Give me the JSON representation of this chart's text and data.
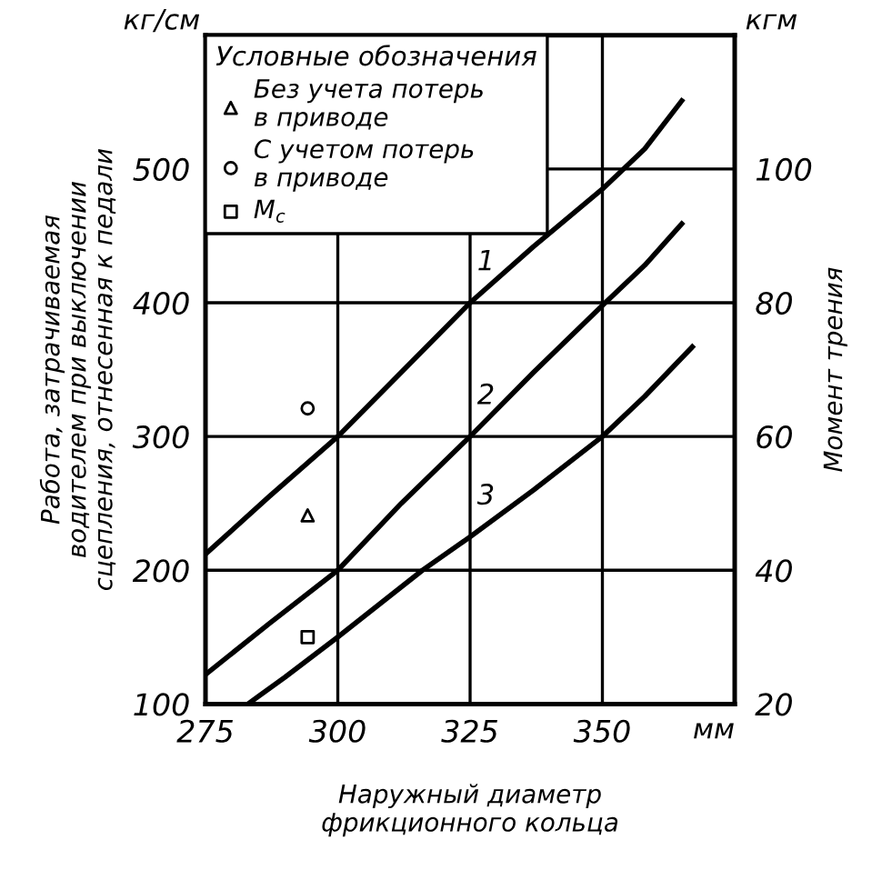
{
  "chart_data": {
    "type": "line",
    "xlabel": "Наружный диаметр\nфрикционного кольца",
    "ylabel": "Работа, затрачиваемая\nводителем при выключении\nсцепления, отнесенная к педали",
    "y2label": "Момент трения",
    "legend_title": "Условные обозначения",
    "xlim": [
      275,
      375
    ],
    "xticks": [
      275,
      300,
      325,
      350
    ],
    "ylim": [
      100,
      600
    ],
    "yticks": [
      100,
      200,
      300,
      400,
      500
    ],
    "y2lim": [
      20,
      120
    ],
    "y2ticks": [
      20,
      40,
      60,
      80,
      100
    ],
    "grid": true,
    "legend": "top left",
    "line_style": "solid",
    "annotations": [
      "кг/см",
      "кгм",
      "мм"
    ],
    "series": [
      {
        "name": "1",
        "color": "#000000",
        "x": [
          275,
          287,
          300,
          312,
          325,
          337,
          350,
          358,
          365
        ],
        "values": [
          212,
          255,
          300,
          348,
          400,
          442,
          485,
          515,
          551
        ]
      },
      {
        "name": "2",
        "color": "#000000",
        "x": [
          275,
          287,
          300,
          312,
          325,
          337,
          350,
          358,
          365
        ],
        "values": [
          122,
          160,
          200,
          250,
          300,
          348,
          398,
          428,
          459
        ]
      },
      {
        "name": "3",
        "color": "#000000",
        "x": [
          283,
          290,
          300,
          316,
          325,
          337,
          350,
          358,
          367
        ],
        "values": [
          100,
          120,
          150,
          200,
          225,
          260,
          300,
          330,
          367
        ]
      },
      {
        "name": "Без учета потерь\nв приводе",
        "type": "scatter",
        "marker": "triangle",
        "color": "#000000",
        "x": [
          294.3
        ],
        "values": [
          241
        ]
      },
      {
        "name": "С учетом потерь\nв приводе",
        "type": "scatter",
        "marker": "circle",
        "color": "#000000",
        "x": [
          294.3
        ],
        "values": [
          321
        ]
      },
      {
        "name": "M$_{c}$",
        "type": "scatter",
        "marker": "square",
        "color": "#000000",
        "x": [
          294.3
        ],
        "values": [
          150
        ]
      }
    ]
  }
}
